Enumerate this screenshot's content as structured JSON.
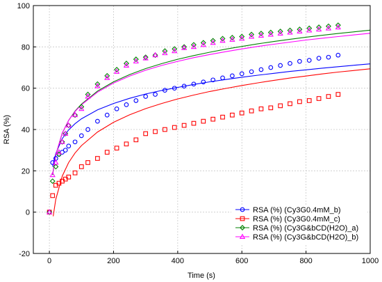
{
  "chart_data": {
    "type": "scatter",
    "xlabel": "Time (s)",
    "ylabel": "RSA (%)",
    "xlim": [
      -50,
      1000
    ],
    "ylim": [
      -20,
      100
    ],
    "x_ticks": [
      0,
      200,
      400,
      600,
      800,
      1000
    ],
    "y_ticks": [
      -20,
      0,
      20,
      40,
      60,
      80,
      100
    ],
    "x_tick_labels": [
      "0",
      "200",
      "400",
      "600",
      "800",
      "1000"
    ],
    "y_tick_labels": [
      "-20",
      "0",
      "20",
      "40",
      "60",
      "80",
      "100"
    ],
    "grid": true,
    "legend_position": "bottom-right",
    "series": [
      {
        "name": "RSA (%) (Cy3G0.4mM_b)",
        "color": "#0000ff",
        "marker": "circle",
        "x": [
          0,
          10,
          20,
          30,
          40,
          50,
          60,
          80,
          100,
          120,
          150,
          180,
          210,
          240,
          270,
          300,
          330,
          360,
          390,
          420,
          450,
          480,
          510,
          540,
          570,
          600,
          630,
          660,
          690,
          720,
          750,
          780,
          810,
          840,
          870,
          900
        ],
        "y": [
          0,
          24,
          26,
          28,
          29,
          30,
          32,
          34,
          37,
          40,
          44,
          47,
          50,
          52,
          54,
          56,
          57,
          59,
          60,
          61,
          62,
          63,
          64,
          65,
          66,
          67,
          68,
          69,
          70,
          71,
          72,
          73,
          73.5,
          74.5,
          75,
          76
        ],
        "fit": [
          [
            10,
            22
          ],
          [
            20,
            28.4
          ],
          [
            40,
            35.6
          ],
          [
            60,
            39.8
          ],
          [
            80,
            42.8
          ],
          [
            100,
            45.2
          ],
          [
            150,
            49.5
          ],
          [
            200,
            52.6
          ],
          [
            250,
            55.1
          ],
          [
            300,
            57.2
          ],
          [
            350,
            58.9
          ],
          [
            400,
            60.4
          ],
          [
            450,
            61.8
          ],
          [
            500,
            63.1
          ],
          [
            550,
            64.2
          ],
          [
            600,
            65.3
          ],
          [
            650,
            66.3
          ],
          [
            700,
            67.2
          ],
          [
            750,
            68.1
          ],
          [
            800,
            68.9
          ],
          [
            850,
            69.7
          ],
          [
            900,
            70.4
          ],
          [
            950,
            71.1
          ],
          [
            1000,
            71.8
          ]
        ]
      },
      {
        "name": "RSA (%) (Cy3G0.4mM_c)",
        "color": "#ff0000",
        "marker": "square",
        "x": [
          0,
          10,
          20,
          30,
          40,
          50,
          60,
          80,
          100,
          120,
          150,
          180,
          210,
          240,
          270,
          300,
          330,
          360,
          390,
          420,
          450,
          480,
          510,
          540,
          570,
          600,
          630,
          660,
          690,
          720,
          750,
          780,
          810,
          840,
          870,
          900
        ],
        "y": [
          0,
          8,
          13,
          14,
          15,
          16,
          17,
          19,
          22,
          24,
          26,
          29,
          31,
          33,
          35,
          38,
          39,
          40,
          41,
          42,
          43,
          44,
          45,
          46,
          47,
          48,
          49,
          50,
          50.5,
          51.5,
          52.5,
          53.5,
          54,
          55,
          56,
          57
        ],
        "fit": [
          [
            12,
            -2
          ],
          [
            20,
            6.2
          ],
          [
            40,
            17.4
          ],
          [
            60,
            24
          ],
          [
            80,
            28.6
          ],
          [
            100,
            32.2
          ],
          [
            150,
            38.8
          ],
          [
            200,
            43.5
          ],
          [
            250,
            47.1
          ],
          [
            300,
            50.1
          ],
          [
            350,
            52.6
          ],
          [
            400,
            54.8
          ],
          [
            450,
            56.7
          ],
          [
            500,
            58.4
          ],
          [
            550,
            59.9
          ],
          [
            600,
            61.3
          ],
          [
            650,
            62.6
          ],
          [
            700,
            63.8
          ],
          [
            750,
            64.9
          ],
          [
            800,
            65.9
          ],
          [
            850,
            66.9
          ],
          [
            900,
            67.8
          ],
          [
            950,
            68.6
          ],
          [
            1000,
            69.4
          ]
        ]
      },
      {
        "name": "RSA (%) (Cy3G&bCD(H2O)_a)",
        "color": "#008000",
        "marker": "diamond",
        "x": [
          0,
          10,
          20,
          30,
          40,
          50,
          60,
          80,
          100,
          120,
          150,
          180,
          210,
          240,
          270,
          300,
          330,
          360,
          390,
          420,
          450,
          480,
          510,
          540,
          570,
          600,
          630,
          660,
          690,
          720,
          750,
          780,
          810,
          840,
          870,
          900
        ],
        "y": [
          0,
          15,
          22,
          28,
          34,
          38,
          42,
          47,
          51,
          57,
          62,
          66,
          69,
          72,
          74,
          75,
          76,
          78,
          79,
          80,
          81,
          82,
          83,
          84,
          84.5,
          85,
          86,
          86.5,
          87,
          87.5,
          88,
          88.5,
          89,
          89.5,
          90,
          90.5
        ],
        "fit": [
          [
            10,
            18
          ],
          [
            20,
            27.5
          ],
          [
            40,
            38.2
          ],
          [
            60,
            44.4
          ],
          [
            80,
            48.9
          ],
          [
            100,
            52.3
          ],
          [
            150,
            58.6
          ],
          [
            200,
            63.1
          ],
          [
            250,
            66.6
          ],
          [
            300,
            69.5
          ],
          [
            350,
            71.9
          ],
          [
            400,
            74
          ],
          [
            450,
            75.8
          ],
          [
            500,
            77.4
          ],
          [
            550,
            78.9
          ],
          [
            600,
            80.2
          ],
          [
            650,
            81.5
          ],
          [
            700,
            82.6
          ],
          [
            750,
            83.7
          ],
          [
            800,
            84.7
          ],
          [
            850,
            85.6
          ],
          [
            900,
            86.5
          ],
          [
            950,
            87.3
          ],
          [
            1000,
            88.1
          ]
        ]
      },
      {
        "name": "RSA (%) (Cy3G&bCD(H2O)_b)",
        "color": "#ff00ff",
        "marker": "triangle",
        "x": [
          0,
          10,
          20,
          30,
          40,
          50,
          60,
          80,
          100,
          120,
          150,
          180,
          210,
          240,
          270,
          300,
          330,
          360,
          390,
          420,
          450,
          480,
          510,
          540,
          570,
          600,
          630,
          660,
          690,
          720,
          750,
          780,
          810,
          840,
          870,
          900
        ],
        "y": [
          0,
          18,
          24,
          29,
          34,
          38,
          42,
          47,
          50,
          56,
          61,
          65,
          68,
          71,
          73,
          74.5,
          76,
          77,
          78,
          79.5,
          80,
          81,
          82,
          83,
          83.5,
          84,
          85,
          85.5,
          86,
          86.5,
          87,
          87.5,
          88,
          88.5,
          89,
          89.5
        ],
        "fit": [
          [
            10,
            18.5
          ],
          [
            20,
            27.8
          ],
          [
            40,
            38.3
          ],
          [
            60,
            44.4
          ],
          [
            80,
            48.7
          ],
          [
            100,
            52
          ],
          [
            150,
            58.1
          ],
          [
            200,
            62.5
          ],
          [
            250,
            65.9
          ],
          [
            300,
            68.7
          ],
          [
            350,
            71
          ],
          [
            400,
            73
          ],
          [
            450,
            74.8
          ],
          [
            500,
            76.3
          ],
          [
            550,
            77.7
          ],
          [
            600,
            79
          ],
          [
            650,
            80.2
          ],
          [
            700,
            81.3
          ],
          [
            750,
            82.3
          ],
          [
            800,
            83.3
          ],
          [
            850,
            84.2
          ],
          [
            900,
            85
          ],
          [
            950,
            85.8
          ],
          [
            1000,
            86.6
          ]
        ]
      }
    ]
  }
}
